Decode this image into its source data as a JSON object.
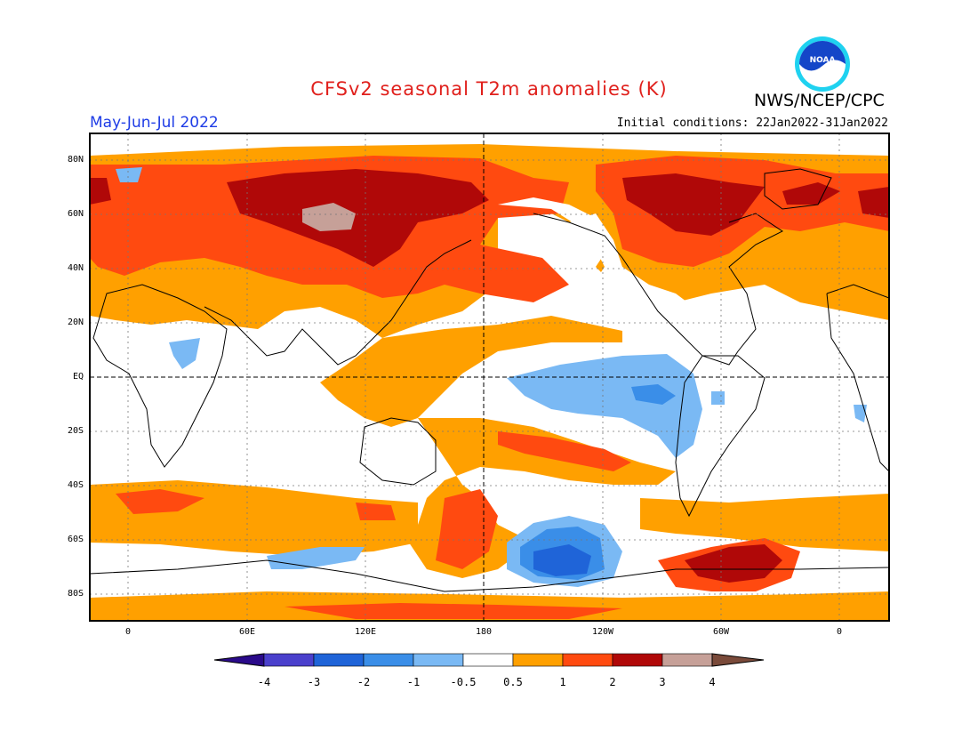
{
  "header": {
    "title": "CFSv2 seasonal T2m anomalies (K)",
    "agency": "NWS/NCEP/CPC",
    "logo_text": "NOAA",
    "season": "May-Jun-Jul 2022",
    "initial_conditions": "Initial conditions: 22Jan2022-31Jan2022"
  },
  "map": {
    "projection": "equirectangular",
    "lon_range": "20W-20E wrapped (0-360 plus)",
    "lat_range": [
      -90,
      90
    ],
    "lat_labels": [
      "80N",
      "60N",
      "40N",
      "20N",
      "EQ",
      "20S",
      "40S",
      "60S",
      "80S"
    ],
    "lon_labels": [
      "0",
      "60E",
      "120E",
      "180",
      "120W",
      "60W",
      "0"
    ],
    "reference_lines": [
      "EQ",
      "180"
    ]
  },
  "colorbar": {
    "labels": [
      "-4",
      "-3",
      "-2",
      "-1",
      "-0.5",
      "0.5",
      "1",
      "2",
      "3",
      "4"
    ],
    "colors": [
      "#2a0a8a",
      "#4a40cc",
      "#1f64d8",
      "#3a8ee8",
      "#7ab9f4",
      "#ffffff",
      "#ffa000",
      "#ff4a10",
      "#b00808",
      "#c6a098",
      "#7a4a3a"
    ]
  }
}
